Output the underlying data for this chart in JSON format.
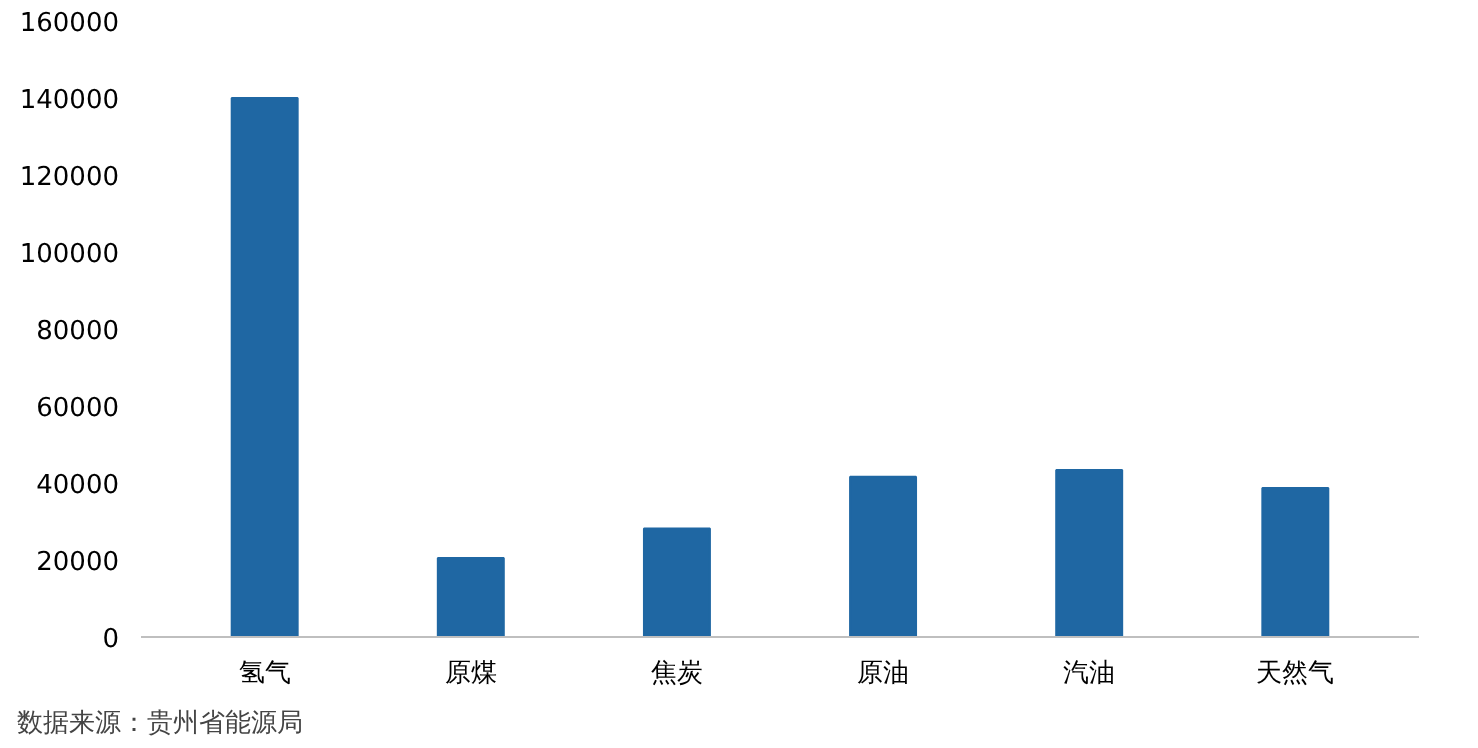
{
  "chart_data": {
    "type": "bar",
    "categories": [
      "氢气",
      "原煤",
      "焦炭",
      "原油",
      "汽油",
      "天然气"
    ],
    "values": [
      140000,
      20500,
      28200,
      41600,
      43400,
      38700
    ],
    "color": "#1f67a3",
    "ylim": [
      0,
      160000
    ],
    "yticks": [
      0,
      20000,
      40000,
      60000,
      80000,
      100000,
      120000,
      140000,
      160000
    ],
    "grid": false,
    "annotations": [
      "数据来源：贵州省能源局"
    ]
  }
}
